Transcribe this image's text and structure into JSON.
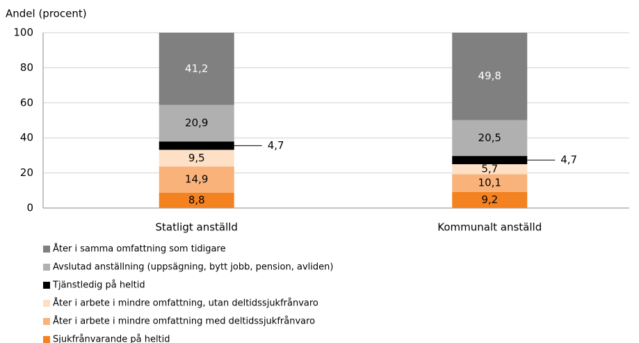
{
  "chart_data": {
    "type": "stacked_bar",
    "y_label": "Andel (procent)",
    "categories": [
      "Statligt anställd",
      "Kommunalt anställd"
    ],
    "series": [
      {
        "name": "Sjukfrånvarande på heltid",
        "color": "#f58220",
        "values": [
          8.8,
          9.2
        ],
        "value_labels": [
          "8,8",
          "9,2"
        ]
      },
      {
        "name": "Åter i arbete i mindre omfattning med deltidssjukfrånvaro",
        "color": "#f9b27a",
        "values": [
          14.9,
          10.1
        ],
        "value_labels": [
          "14,9",
          "10,1"
        ]
      },
      {
        "name": "Åter i arbete i mindre omfattning, utan deltidssjukfrånvaro",
        "color": "#fde0c5",
        "values": [
          9.5,
          5.7
        ],
        "value_labels": [
          "9,5",
          "5,7"
        ]
      },
      {
        "name": "Tjänstledig på heltid",
        "color": "#000000",
        "values": [
          4.7,
          4.7
        ],
        "value_labels": [
          "4,7",
          "4,7"
        ]
      },
      {
        "name": "Avslutad anställning (uppsägning, bytt jobb, pension, avliden)",
        "color": "#b0b0b0",
        "values": [
          20.9,
          20.5
        ],
        "value_labels": [
          "20,9",
          "20,5"
        ]
      },
      {
        "name": "Åter i samma omfattning som tidigare",
        "color": "#808080",
        "values": [
          41.2,
          49.8
        ],
        "value_labels": [
          "41,2",
          "49,8"
        ]
      }
    ],
    "ylim": [
      0,
      100
    ],
    "yticks": [
      0,
      20,
      40,
      60,
      80,
      100
    ],
    "grid": true
  }
}
